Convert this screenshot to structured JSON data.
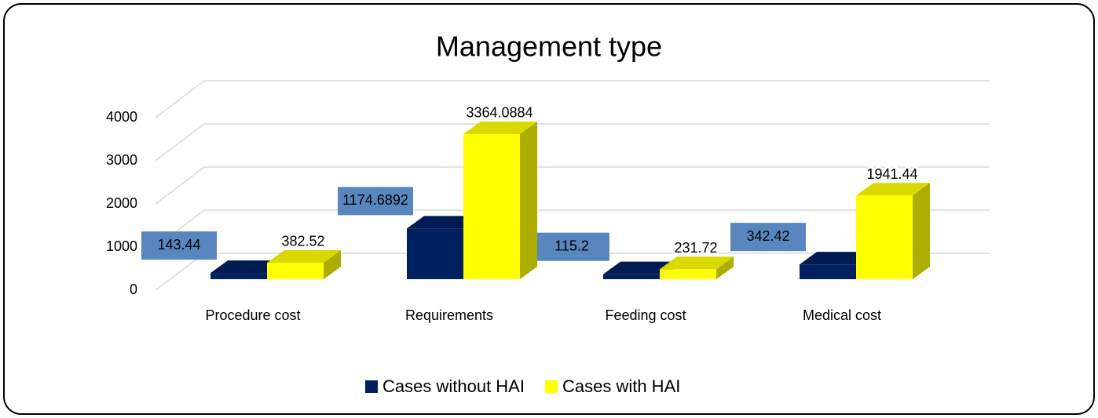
{
  "chart_data": {
    "type": "bar3d",
    "title": "Management type",
    "categories": [
      "Procedure cost",
      "Requirements",
      "Feeding cost",
      "Medical cost"
    ],
    "series": [
      {
        "name": "Cases without HAI",
        "color": "#002060",
        "values": [
          143.44,
          1174.6892,
          115.2,
          342.42
        ]
      },
      {
        "name": "Cases with HAI",
        "color": "#ffff00",
        "values": [
          382.52,
          3364.0884,
          231.72,
          1941.44
        ]
      }
    ],
    "ylim": [
      0,
      4000
    ],
    "yticks": [
      0,
      1000,
      2000,
      3000,
      4000
    ],
    "grid": true,
    "legend": "bottom"
  }
}
